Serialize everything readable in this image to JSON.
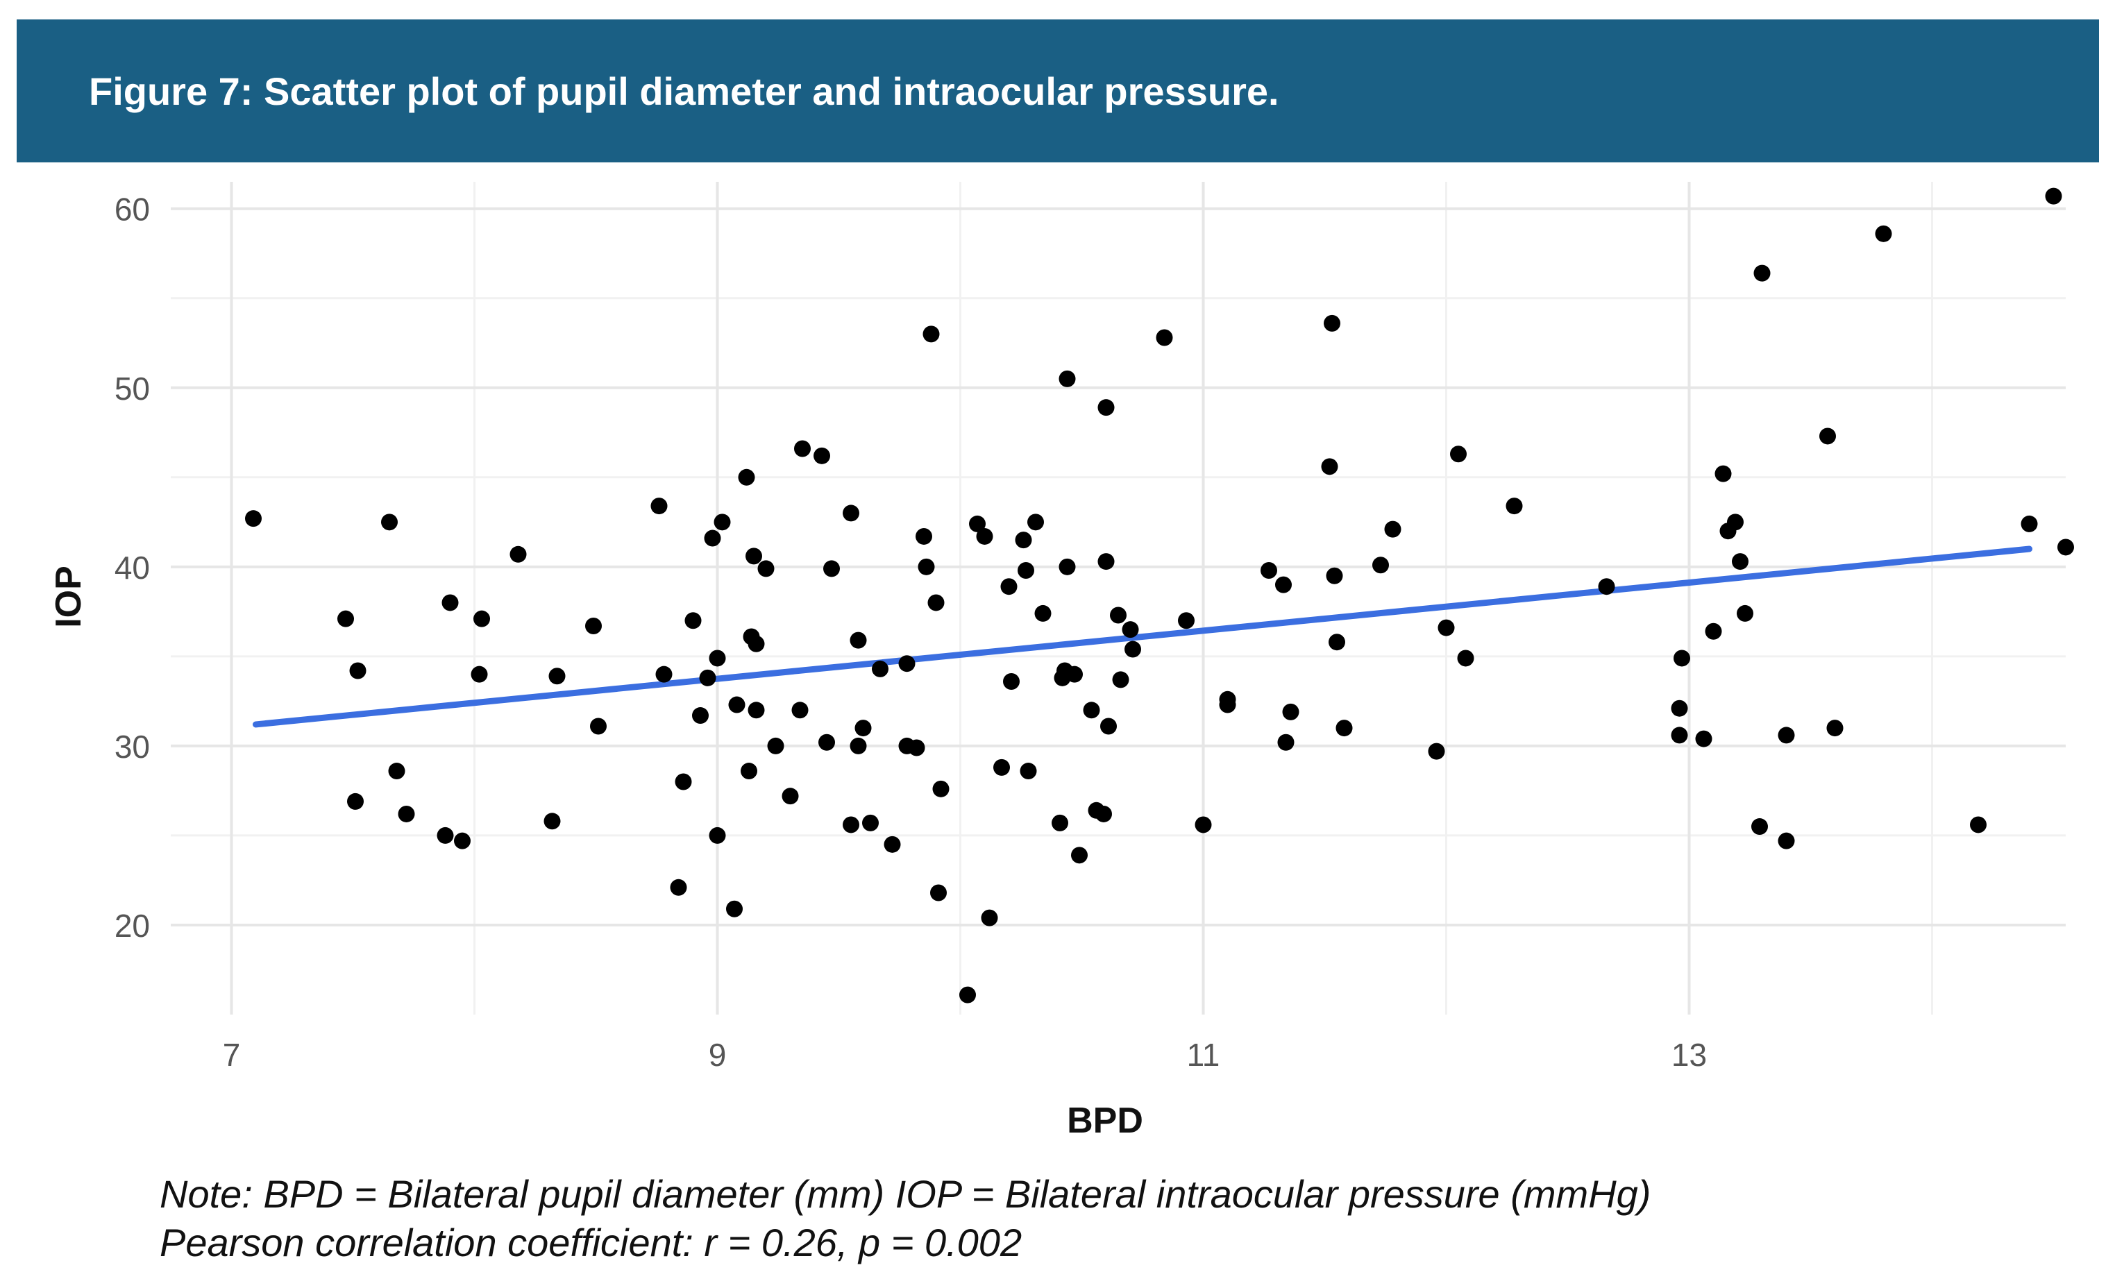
{
  "figure": {
    "title": "Figure 7: Scatter plot of pupil diameter and intraocular pressure."
  },
  "notes": {
    "line1": "Note: BPD = Bilateral pupil diameter (mm)  IOP = Bilateral intraocular pressure (mmHg)",
    "line2": "Pearson correlation coefficient: r = 0.26, p = 0.002"
  },
  "colors": {
    "header": "#1a5f84",
    "point": "#000000",
    "trend": "#3b6ee0",
    "grid_major": "#e6e6e6",
    "grid_minor": "#f1f1f1",
    "tick_text": "#555555"
  },
  "chart_data": {
    "type": "scatter",
    "title": "Figure 7: Scatter plot of pupil diameter and intraocular pressure.",
    "xlabel": "BPD",
    "ylabel": "IOP",
    "xlim": [
      6.75,
      14.55
    ],
    "ylim": [
      15,
      61.5
    ],
    "xticks": [
      7,
      9,
      11,
      13
    ],
    "yticks": [
      20,
      30,
      40,
      50,
      60
    ],
    "grid": true,
    "trendline": {
      "x": [
        7.1,
        14.4
      ],
      "y": [
        31.2,
        41.0
      ]
    },
    "points": [
      [
        7.09,
        42.7
      ],
      [
        7.47,
        37.1
      ],
      [
        7.52,
        34.2
      ],
      [
        7.51,
        26.9
      ],
      [
        7.65,
        42.5
      ],
      [
        7.68,
        28.6
      ],
      [
        7.72,
        26.2
      ],
      [
        7.88,
        25.0
      ],
      [
        7.9,
        38.0
      ],
      [
        7.95,
        24.7
      ],
      [
        8.02,
        34.0
      ],
      [
        8.03,
        37.1
      ],
      [
        8.18,
        40.7
      ],
      [
        8.32,
        25.8
      ],
      [
        8.34,
        33.9
      ],
      [
        8.49,
        36.7
      ],
      [
        8.51,
        31.1
      ],
      [
        8.76,
        43.4
      ],
      [
        8.78,
        34.0
      ],
      [
        8.84,
        22.1
      ],
      [
        8.86,
        28.0
      ],
      [
        8.9,
        37.0
      ],
      [
        8.93,
        31.7
      ],
      [
        8.96,
        33.8
      ],
      [
        8.98,
        41.6
      ],
      [
        9.0,
        25.0
      ],
      [
        9.0,
        34.9
      ],
      [
        9.02,
        42.5
      ],
      [
        9.07,
        20.9
      ],
      [
        9.08,
        32.3
      ],
      [
        9.12,
        45.0
      ],
      [
        9.13,
        28.6
      ],
      [
        9.14,
        36.1
      ],
      [
        9.15,
        40.6
      ],
      [
        9.16,
        35.7
      ],
      [
        9.16,
        32.0
      ],
      [
        9.2,
        39.9
      ],
      [
        9.24,
        30.0
      ],
      [
        9.3,
        27.2
      ],
      [
        9.34,
        32.0
      ],
      [
        9.35,
        46.6
      ],
      [
        9.43,
        46.2
      ],
      [
        9.45,
        30.2
      ],
      [
        9.47,
        39.9
      ],
      [
        9.55,
        43.0
      ],
      [
        9.55,
        25.6
      ],
      [
        9.58,
        35.9
      ],
      [
        9.58,
        30.0
      ],
      [
        9.6,
        31.0
      ],
      [
        9.63,
        25.7
      ],
      [
        9.67,
        34.3
      ],
      [
        9.72,
        24.5
      ],
      [
        9.78,
        30.0
      ],
      [
        9.78,
        34.6
      ],
      [
        9.82,
        29.9
      ],
      [
        9.85,
        41.7
      ],
      [
        9.86,
        40.0
      ],
      [
        9.88,
        53.0
      ],
      [
        9.9,
        38.0
      ],
      [
        9.91,
        21.8
      ],
      [
        9.92,
        27.6
      ],
      [
        10.03,
        16.1
      ],
      [
        10.07,
        42.4
      ],
      [
        10.1,
        41.7
      ],
      [
        10.12,
        20.4
      ],
      [
        10.17,
        28.8
      ],
      [
        10.2,
        38.9
      ],
      [
        10.21,
        33.6
      ],
      [
        10.26,
        41.5
      ],
      [
        10.27,
        39.8
      ],
      [
        10.28,
        28.6
      ],
      [
        10.31,
        42.5
      ],
      [
        10.34,
        37.4
      ],
      [
        10.41,
        25.7
      ],
      [
        10.42,
        33.8
      ],
      [
        10.43,
        34.2
      ],
      [
        10.44,
        40.0
      ],
      [
        10.44,
        50.5
      ],
      [
        10.47,
        34.0
      ],
      [
        10.49,
        23.9
      ],
      [
        10.54,
        32.0
      ],
      [
        10.56,
        26.4
      ],
      [
        10.59,
        26.2
      ],
      [
        10.6,
        40.3
      ],
      [
        10.6,
        48.9
      ],
      [
        10.61,
        31.1
      ],
      [
        10.65,
        37.3
      ],
      [
        10.66,
        33.7
      ],
      [
        10.7,
        36.5
      ],
      [
        10.71,
        35.4
      ],
      [
        10.84,
        52.8
      ],
      [
        10.93,
        37.0
      ],
      [
        11.0,
        25.6
      ],
      [
        11.1,
        32.6
      ],
      [
        11.1,
        32.3
      ],
      [
        11.27,
        39.8
      ],
      [
        11.33,
        39.0
      ],
      [
        11.34,
        30.2
      ],
      [
        11.36,
        31.9
      ],
      [
        11.52,
        45.6
      ],
      [
        11.53,
        53.6
      ],
      [
        11.54,
        39.5
      ],
      [
        11.55,
        35.8
      ],
      [
        11.58,
        31.0
      ],
      [
        11.73,
        40.1
      ],
      [
        11.78,
        42.1
      ],
      [
        11.96,
        29.7
      ],
      [
        12.0,
        36.6
      ],
      [
        12.05,
        46.3
      ],
      [
        12.08,
        34.9
      ],
      [
        12.28,
        43.4
      ],
      [
        12.66,
        38.9
      ],
      [
        12.96,
        30.6
      ],
      [
        12.96,
        32.1
      ],
      [
        12.97,
        34.9
      ],
      [
        13.06,
        30.4
      ],
      [
        13.1,
        36.4
      ],
      [
        13.14,
        45.2
      ],
      [
        13.16,
        42.0
      ],
      [
        13.19,
        42.5
      ],
      [
        13.21,
        40.3
      ],
      [
        13.23,
        37.4
      ],
      [
        13.29,
        25.5
      ],
      [
        13.3,
        56.4
      ],
      [
        13.4,
        24.7
      ],
      [
        13.4,
        30.6
      ],
      [
        13.57,
        47.3
      ],
      [
        13.6,
        31.0
      ],
      [
        13.8,
        58.6
      ],
      [
        14.19,
        25.6
      ],
      [
        14.4,
        42.4
      ],
      [
        14.5,
        60.7
      ],
      [
        14.55,
        41.1
      ]
    ]
  }
}
